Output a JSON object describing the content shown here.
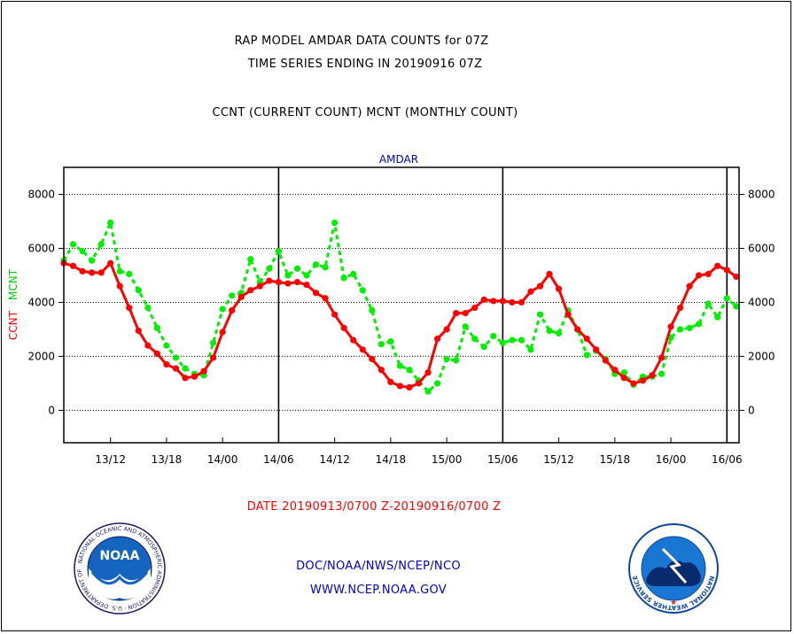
{
  "header": {
    "title_line1": "RAP MODEL AMDAR DATA COUNTS for 07Z",
    "title_line2": "TIME SERIES ENDING IN 20190916 07Z",
    "subtitle": "CCNT (CURRENT COUNT) MCNT (MONTHLY COUNT)"
  },
  "footer": {
    "date_range": "DATE 20190913/0700 Z-20190916/0700 Z",
    "agency": "DOC/NOAA/NWS/NCEP/NCO",
    "website": "WWW.NCEP.NOAA.GOV"
  },
  "logos": {
    "noaa": "NOAA",
    "noaa_ring_text": "NATIONAL OCEANIC AND ATMOSPHERIC ADMINISTRATION · U.S. DEPARTMENT OF COMMERCE",
    "nws_ring_text": "NATIONAL WEATHER SERVICE"
  },
  "colors": {
    "ccnt": "#ff0000",
    "mcnt": "#00ee00",
    "axis": "#000000",
    "panel_label": "#0000cc",
    "footer_link": "#0000cc",
    "date_text": "#ff0000"
  },
  "chart_data": {
    "type": "line",
    "panel_label": "AMDAR",
    "ylabel_series": [
      "CCNT",
      "MCNT"
    ],
    "ylim": [
      -1200,
      9000
    ],
    "yticks": [
      0,
      2000,
      4000,
      6000,
      8000
    ],
    "ytick_labels": [
      "0",
      "2000",
      "4000",
      "6000",
      "8000"
    ],
    "grid": true,
    "x_unit": "hours since 13/07Z",
    "xlim": [
      0,
      72.3
    ],
    "xtick_labels": [
      "13/12",
      "13/18",
      "14/00",
      "14/06",
      "14/12",
      "14/18",
      "15/00",
      "15/06",
      "15/12",
      "15/18",
      "16/00",
      "16/06"
    ],
    "xtick_positions": [
      5,
      11,
      17,
      23,
      29,
      35,
      41,
      47,
      53,
      59,
      65,
      71
    ],
    "day_lines": [
      23,
      47,
      71
    ],
    "series": [
      {
        "name": "CCNT",
        "color": "#ff0000",
        "values": [
          5450,
          5350,
          5150,
          5100,
          5100,
          5450,
          4600,
          3800,
          2950,
          2400,
          2100,
          1700,
          1550,
          1200,
          1250,
          1450,
          1950,
          2900,
          3700,
          4200,
          4450,
          4600,
          4800,
          4750,
          4700,
          4750,
          4650,
          4350,
          4150,
          3550,
          3050,
          2600,
          2250,
          1900,
          1500,
          1050,
          900,
          850,
          1000,
          1400,
          2650,
          3000,
          3600,
          3600,
          3800,
          4100,
          4050,
          4050,
          4000,
          4000,
          4400,
          4600,
          5050,
          4500,
          3550,
          3000,
          2650,
          2250,
          1850,
          1500,
          1200,
          1000,
          1100,
          1300,
          1950,
          3100,
          3800,
          4600,
          5000,
          5050,
          5350,
          5200,
          4950
        ]
      },
      {
        "name": "MCNT",
        "color": "#00ee00",
        "values": [
          5550,
          6150,
          5900,
          5550,
          6150,
          6950,
          5150,
          5050,
          4450,
          3800,
          3050,
          2400,
          1950,
          1550,
          1350,
          1300,
          2500,
          3750,
          4250,
          4350,
          5600,
          4750,
          5250,
          5900,
          5000,
          5250,
          5000,
          5400,
          5300,
          6950,
          4900,
          5050,
          4450,
          3700,
          2450,
          2550,
          1650,
          1500,
          1100,
          700,
          1000,
          1900,
          1850,
          3100,
          2650,
          2350,
          2750,
          2500,
          2600,
          2600,
          2250,
          3550,
          2950,
          2850,
          3700,
          3000,
          2050,
          2200,
          1900,
          1350,
          1400,
          950,
          1250,
          1250,
          1350,
          2700,
          3000,
          3050,
          3200,
          3950,
          3450,
          4150,
          3850
        ]
      }
    ]
  }
}
